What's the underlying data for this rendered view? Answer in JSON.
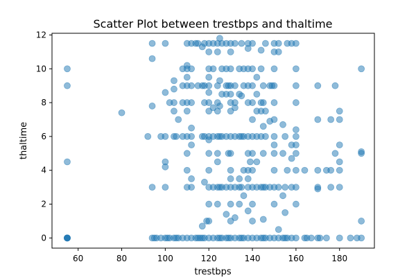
{
  "chart_data": {
    "type": "scatter",
    "title": "Scatter Plot between trestbps and thaltime",
    "xlabel": "trestbps",
    "ylabel": "thaltime",
    "xlim": [
      48,
      196
    ],
    "ylim": [
      -0.6,
      12.1
    ],
    "xticks": [
      60,
      80,
      100,
      120,
      140,
      160,
      180
    ],
    "yticks": [
      0,
      2,
      4,
      6,
      8,
      10,
      12
    ],
    "xtick_labels": [
      "60",
      "80",
      "100",
      "120",
      "140",
      "160",
      "180"
    ],
    "ytick_labels": [
      "0",
      "2",
      "4",
      "6",
      "8",
      "10",
      "12"
    ],
    "grid": false,
    "marker_color": "#1f77b4",
    "marker_alpha": 0.5,
    "points": [
      [
        55,
        0
      ],
      [
        55,
        0
      ],
      [
        55,
        0
      ],
      [
        55,
        0
      ],
      [
        55,
        0
      ],
      [
        55,
        4.5
      ],
      [
        55,
        9
      ],
      [
        55,
        10
      ],
      [
        80,
        7.4
      ],
      [
        92,
        6
      ],
      [
        94,
        0
      ],
      [
        94,
        3
      ],
      [
        94,
        7.8
      ],
      [
        94,
        10.6
      ],
      [
        94,
        11.5
      ],
      [
        95,
        0
      ],
      [
        96,
        0
      ],
      [
        98,
        0
      ],
      [
        98,
        6
      ],
      [
        100,
        0
      ],
      [
        100,
        3
      ],
      [
        100,
        4.2
      ],
      [
        100,
        4.5
      ],
      [
        100,
        6
      ],
      [
        100,
        8.6
      ],
      [
        100,
        11.5
      ],
      [
        101,
        0
      ],
      [
        102,
        0
      ],
      [
        102,
        8
      ],
      [
        104,
        0
      ],
      [
        104,
        6
      ],
      [
        104,
        7.5
      ],
      [
        104,
        8
      ],
      [
        104,
        8.8
      ],
      [
        104,
        9.3
      ],
      [
        105,
        0
      ],
      [
        105,
        6
      ],
      [
        106,
        0
      ],
      [
        106,
        7
      ],
      [
        108,
        0
      ],
      [
        108,
        6
      ],
      [
        108,
        8
      ],
      [
        108,
        9
      ],
      [
        108,
        10
      ],
      [
        110,
        0
      ],
      [
        110,
        3
      ],
      [
        110,
        4
      ],
      [
        110,
        5
      ],
      [
        110,
        6
      ],
      [
        110,
        7.5
      ],
      [
        110,
        8
      ],
      [
        110,
        9
      ],
      [
        110,
        9.5
      ],
      [
        110,
        10
      ],
      [
        110,
        10.2
      ],
      [
        110,
        11.5
      ],
      [
        112,
        0
      ],
      [
        112,
        3
      ],
      [
        112,
        3.5
      ],
      [
        112,
        5.5
      ],
      [
        112,
        6
      ],
      [
        112,
        6.5
      ],
      [
        112,
        8
      ],
      [
        112,
        9
      ],
      [
        112,
        10
      ],
      [
        112,
        11.5
      ],
      [
        114,
        0
      ],
      [
        114,
        11.5
      ],
      [
        115,
        0
      ],
      [
        115,
        9
      ],
      [
        115,
        11.5
      ],
      [
        116,
        0
      ],
      [
        117,
        0
      ],
      [
        117,
        0.7
      ],
      [
        117,
        6
      ],
      [
        117,
        9
      ],
      [
        117,
        11.3
      ],
      [
        118,
        0
      ],
      [
        118,
        3.3
      ],
      [
        118,
        6
      ],
      [
        118,
        8
      ],
      [
        118,
        9
      ],
      [
        118,
        11.5
      ],
      [
        119,
        1
      ],
      [
        120,
        0
      ],
      [
        120,
        1
      ],
      [
        120,
        2
      ],
      [
        120,
        3
      ],
      [
        120,
        4
      ],
      [
        120,
        5
      ],
      [
        120,
        5.8
      ],
      [
        120,
        6
      ],
      [
        120,
        7.5
      ],
      [
        120,
        8
      ],
      [
        120,
        8.6
      ],
      [
        120,
        9
      ],
      [
        120,
        9.5
      ],
      [
        120,
        10
      ],
      [
        120,
        11
      ],
      [
        120,
        11.5
      ],
      [
        122,
        0
      ],
      [
        122,
        3
      ],
      [
        122,
        6
      ],
      [
        122,
        7.7
      ],
      [
        122,
        10
      ],
      [
        122,
        11.5
      ],
      [
        124,
        0
      ],
      [
        124,
        2
      ],
      [
        124,
        3
      ],
      [
        124,
        4.5
      ],
      [
        124,
        5
      ],
      [
        124,
        6
      ],
      [
        124,
        7.5
      ],
      [
        124,
        8
      ],
      [
        124,
        9
      ],
      [
        124,
        11
      ],
      [
        124,
        11.5
      ],
      [
        125,
        0
      ],
      [
        125,
        3
      ],
      [
        125,
        6
      ],
      [
        125,
        7.8
      ],
      [
        125,
        9.3
      ],
      [
        125,
        11.8
      ],
      [
        126,
        0
      ],
      [
        126,
        3
      ],
      [
        126,
        6
      ],
      [
        126,
        8.5
      ],
      [
        126,
        10
      ],
      [
        126,
        11.5
      ],
      [
        128,
        0
      ],
      [
        128,
        1.4
      ],
      [
        128,
        3
      ],
      [
        128,
        6
      ],
      [
        128,
        8.5
      ],
      [
        128,
        9
      ],
      [
        128,
        10
      ],
      [
        128,
        11.5
      ],
      [
        129,
        0
      ],
      [
        129,
        5
      ],
      [
        129,
        9
      ],
      [
        130,
        0
      ],
      [
        130,
        1
      ],
      [
        130,
        2
      ],
      [
        130,
        3
      ],
      [
        130,
        3.5
      ],
      [
        130,
        4
      ],
      [
        130,
        5
      ],
      [
        130,
        6
      ],
      [
        130,
        7.5
      ],
      [
        130,
        8
      ],
      [
        130,
        8.5
      ],
      [
        130,
        9
      ],
      [
        130,
        10
      ],
      [
        130,
        11
      ],
      [
        130,
        11.5
      ],
      [
        132,
        0
      ],
      [
        132,
        1.2
      ],
      [
        132,
        3
      ],
      [
        132,
        6
      ],
      [
        132,
        7.7
      ],
      [
        132,
        8
      ],
      [
        132,
        9
      ],
      [
        132,
        11.5
      ],
      [
        134,
        0
      ],
      [
        134,
        2
      ],
      [
        134,
        3
      ],
      [
        134,
        3.5
      ],
      [
        134,
        6
      ],
      [
        134,
        8.5
      ],
      [
        134,
        10
      ],
      [
        135,
        0
      ],
      [
        135,
        3
      ],
      [
        135,
        6
      ],
      [
        135,
        8.4
      ],
      [
        135,
        11.5
      ],
      [
        136,
        0
      ],
      [
        136,
        2.5
      ],
      [
        136,
        4
      ],
      [
        136,
        6
      ],
      [
        136,
        9
      ],
      [
        136,
        10
      ],
      [
        138,
        0
      ],
      [
        138,
        1.6
      ],
      [
        138,
        3
      ],
      [
        138,
        3.5
      ],
      [
        138,
        4
      ],
      [
        138,
        5
      ],
      [
        138,
        6
      ],
      [
        138,
        8
      ],
      [
        138,
        9
      ],
      [
        138,
        10
      ],
      [
        138,
        11.2
      ],
      [
        138,
        11.5
      ],
      [
        139,
        4.5
      ],
      [
        140,
        0
      ],
      [
        140,
        1
      ],
      [
        140,
        2
      ],
      [
        140,
        3
      ],
      [
        140,
        4
      ],
      [
        140,
        5
      ],
      [
        140,
        6
      ],
      [
        140,
        7
      ],
      [
        140,
        8
      ],
      [
        140,
        9
      ],
      [
        140,
        10
      ],
      [
        140,
        11.5
      ],
      [
        142,
        0
      ],
      [
        142,
        3
      ],
      [
        142,
        4.5
      ],
      [
        142,
        6
      ],
      [
        142,
        7.5
      ],
      [
        142,
        8.5
      ],
      [
        142,
        9.5
      ],
      [
        144,
        0
      ],
      [
        144,
        3
      ],
      [
        144,
        6
      ],
      [
        144,
        7.5
      ],
      [
        144,
        8
      ],
      [
        144,
        10
      ],
      [
        144,
        11.1
      ],
      [
        145,
        0
      ],
      [
        145,
        1.1
      ],
      [
        145,
        3
      ],
      [
        145,
        5
      ],
      [
        145,
        6.6
      ],
      [
        145,
        8
      ],
      [
        145,
        9
      ],
      [
        146,
        0
      ],
      [
        146,
        3
      ],
      [
        146,
        6
      ],
      [
        146,
        7.5
      ],
      [
        146,
        11.5
      ],
      [
        148,
        0
      ],
      [
        148,
        3
      ],
      [
        148,
        6.9
      ],
      [
        148,
        9
      ],
      [
        149,
        9
      ],
      [
        150,
        0
      ],
      [
        150,
        2
      ],
      [
        150,
        3
      ],
      [
        150,
        4
      ],
      [
        150,
        5
      ],
      [
        150,
        5.5
      ],
      [
        150,
        6
      ],
      [
        150,
        7
      ],
      [
        150,
        8
      ],
      [
        150,
        9
      ],
      [
        150,
        10
      ],
      [
        150,
        11
      ],
      [
        150,
        11.5
      ],
      [
        152,
        0
      ],
      [
        152,
        0.5
      ],
      [
        152,
        3
      ],
      [
        152,
        11
      ],
      [
        152,
        11.5
      ],
      [
        154,
        0
      ],
      [
        154,
        2.5
      ],
      [
        154,
        5
      ],
      [
        154,
        6.7
      ],
      [
        155,
        0
      ],
      [
        155,
        1.5
      ],
      [
        155,
        3
      ],
      [
        155,
        6
      ],
      [
        156,
        0
      ],
      [
        156,
        4
      ],
      [
        156,
        11.5
      ],
      [
        158,
        0
      ],
      [
        158,
        3
      ],
      [
        158,
        4.7
      ],
      [
        158,
        5.5
      ],
      [
        158,
        11.5
      ],
      [
        160,
        0
      ],
      [
        160,
        2
      ],
      [
        160,
        3
      ],
      [
        160,
        4
      ],
      [
        160,
        5
      ],
      [
        160,
        5.5
      ],
      [
        160,
        6
      ],
      [
        160,
        6.4
      ],
      [
        160,
        8
      ],
      [
        160,
        9
      ],
      [
        160,
        10
      ],
      [
        160,
        11.5
      ],
      [
        164,
        0
      ],
      [
        164,
        4
      ],
      [
        165,
        0
      ],
      [
        167,
        0
      ],
      [
        170,
        0
      ],
      [
        170,
        2.9
      ],
      [
        170,
        3
      ],
      [
        170,
        4
      ],
      [
        170,
        7
      ],
      [
        170,
        9
      ],
      [
        171,
        0
      ],
      [
        174,
        0
      ],
      [
        174,
        4
      ],
      [
        176,
        3
      ],
      [
        176,
        4
      ],
      [
        176,
        7
      ],
      [
        178,
        5
      ],
      [
        178,
        9
      ],
      [
        180,
        0
      ],
      [
        180,
        3
      ],
      [
        180,
        4
      ],
      [
        180,
        4.5
      ],
      [
        180,
        5.5
      ],
      [
        180,
        7
      ],
      [
        180,
        7.5
      ],
      [
        185,
        0
      ],
      [
        188,
        0
      ],
      [
        190,
        0
      ],
      [
        190,
        1
      ],
      [
        190,
        5
      ],
      [
        190,
        5.1
      ],
      [
        190,
        10
      ]
    ]
  }
}
